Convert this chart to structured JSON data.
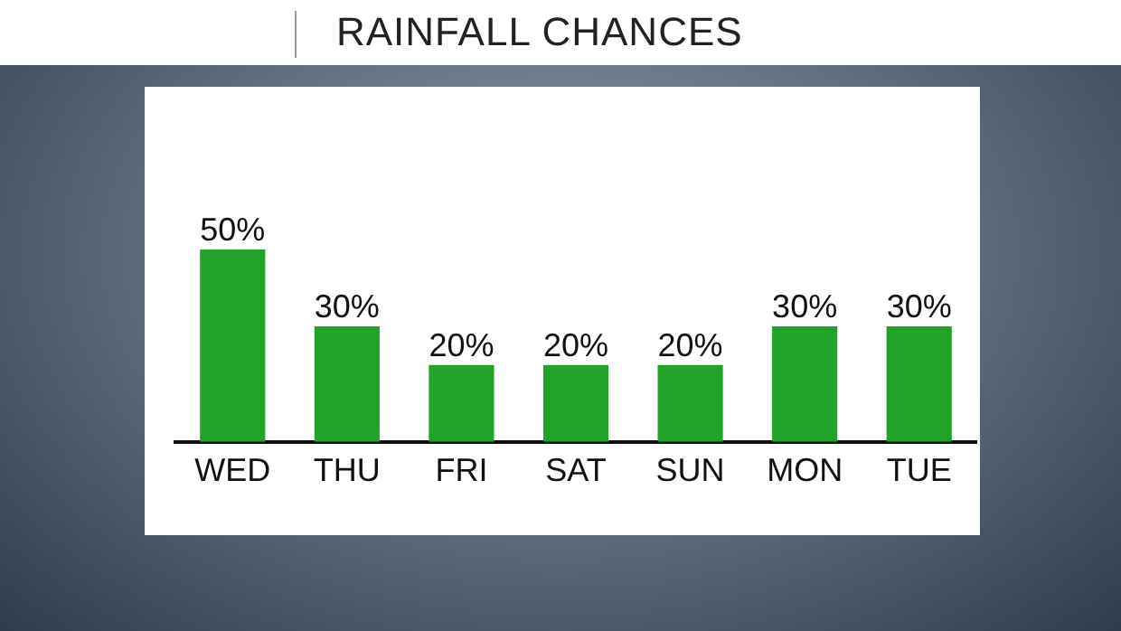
{
  "chart_data": {
    "type": "bar",
    "title": "RAINFALL CHANCES",
    "categories": [
      "WED",
      "THU",
      "FRI",
      "SAT",
      "SUN",
      "MON",
      "TUE"
    ],
    "values": [
      50,
      30,
      20,
      20,
      20,
      30,
      30
    ],
    "value_labels": [
      "50%",
      "30%",
      "20%",
      "20%",
      "20%",
      "30%",
      "30%"
    ],
    "color": "#22a228",
    "grid": false,
    "legend": false,
    "tick_labels": "x"
  }
}
